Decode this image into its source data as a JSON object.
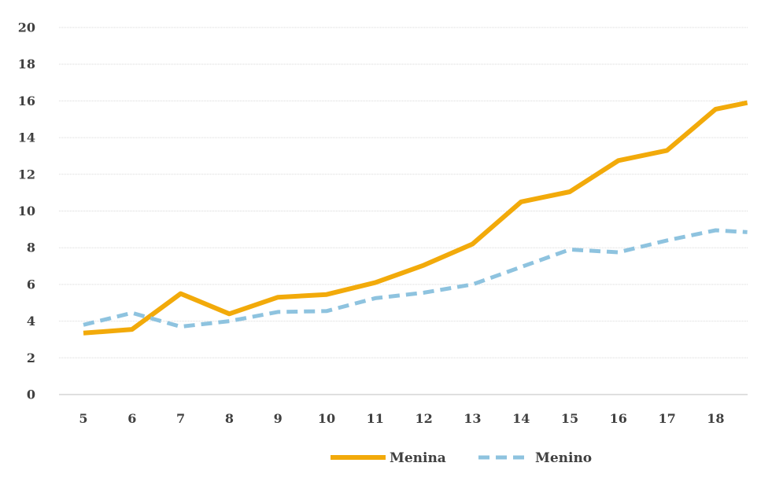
{
  "chart_data": {
    "type": "line",
    "title": "",
    "xlabel": "",
    "ylabel": "",
    "x": [
      5,
      6,
      7,
      8,
      9,
      10,
      11,
      12,
      13,
      14,
      15,
      16,
      17,
      18
    ],
    "x_tick_labels": [
      "5",
      "6",
      "7",
      "8",
      "9",
      "10",
      "11",
      "12",
      "13",
      "14",
      "15",
      "16",
      "17",
      "18"
    ],
    "ylim": [
      0,
      20
    ],
    "y_ticks": [
      0,
      2,
      4,
      6,
      8,
      10,
      12,
      14,
      16,
      18,
      20
    ],
    "y_tick_labels": [
      "0",
      "2",
      "4",
      "6",
      "8",
      "10",
      "12",
      "14",
      "16",
      "18",
      "20"
    ],
    "grid": true,
    "legend_position": "bottom-center",
    "series": [
      {
        "name": "Menina",
        "color": "#F2AA0A",
        "style": "solid",
        "points": [
          [
            5,
            3.35
          ],
          [
            6,
            3.55
          ],
          [
            7,
            5.5
          ],
          [
            8,
            4.4
          ],
          [
            9,
            5.3
          ],
          [
            10,
            5.45
          ],
          [
            11,
            6.1
          ],
          [
            12,
            7.05
          ],
          [
            13,
            8.2
          ],
          [
            14,
            10.5
          ],
          [
            15,
            11.05
          ],
          [
            16,
            12.75
          ],
          [
            17,
            13.3
          ],
          [
            18,
            15.55
          ],
          [
            18.65,
            15.9
          ]
        ]
      },
      {
        "name": "Menino",
        "color": "#8EC3DF",
        "style": "dashed",
        "points": [
          [
            5,
            3.8
          ],
          [
            6,
            4.45
          ],
          [
            7,
            3.7
          ],
          [
            8,
            4.0
          ],
          [
            9,
            4.5
          ],
          [
            10,
            4.55
          ],
          [
            11,
            5.25
          ],
          [
            12,
            5.55
          ],
          [
            13,
            6.0
          ],
          [
            14,
            6.95
          ],
          [
            15,
            7.9
          ],
          [
            16,
            7.75
          ],
          [
            17,
            8.4
          ],
          [
            18,
            8.95
          ],
          [
            18.65,
            8.85
          ]
        ]
      }
    ]
  }
}
